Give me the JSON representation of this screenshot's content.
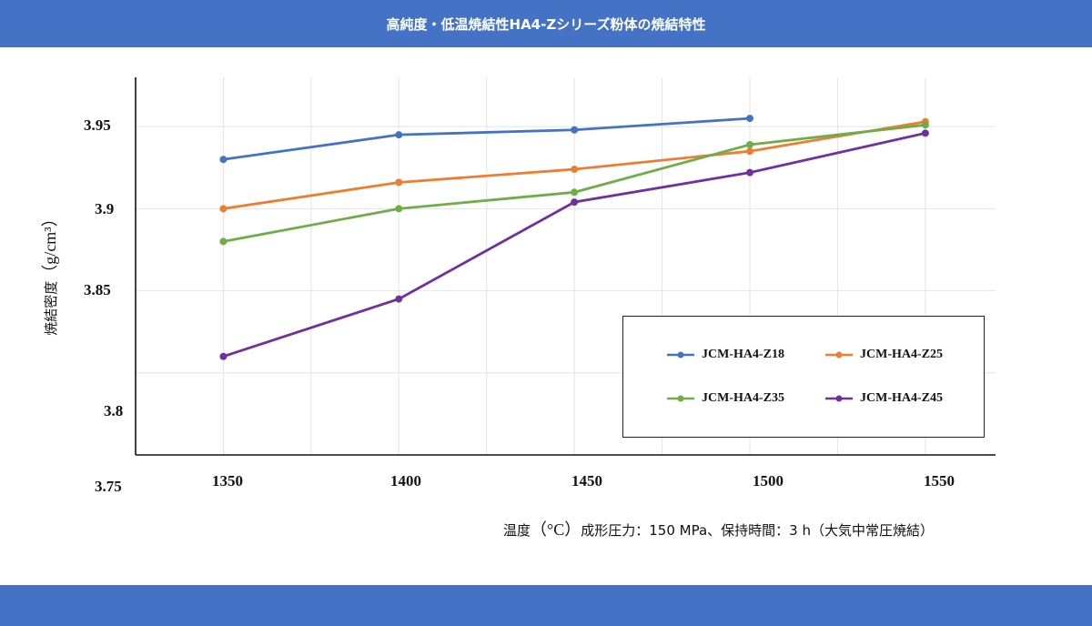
{
  "header": {
    "title": "高純度・低温焼結性HA4-Zシリーズ粉体の焼結特性"
  },
  "chart_data": {
    "type": "line",
    "ylabel_main": "焼結密度",
    "ylabel_unit": "（g/cm³）",
    "xlabel_main": "温度",
    "xlabel_unit": "（°C）",
    "xlabel_note": "成形圧力：150 MPa、保持時間：3 h（大気中常圧焼結）",
    "x_ticks": [
      "1350",
      "1400",
      "1450",
      "1500",
      "1550"
    ],
    "y_ticks": [
      "3.95",
      "3.9",
      "3.85",
      "3.8",
      "3.75"
    ],
    "xlim": [
      1325,
      1570
    ],
    "ylim": [
      3.75,
      3.98
    ],
    "grid": true,
    "legend_position": "lower-right",
    "x": [
      1350,
      1400,
      1450,
      1500,
      1550
    ],
    "series": [
      {
        "name": "JCM-HA4-Z18",
        "color": "#4472c4",
        "values": [
          3.93,
          3.945,
          3.948,
          3.955,
          null
        ]
      },
      {
        "name": "JCM-HA4-Z25",
        "color": "#ed7d31",
        "values": [
          3.9,
          3.916,
          3.924,
          3.935,
          3.953
        ]
      },
      {
        "name": "JCM-HA4-Z35",
        "color": "#70ad47",
        "values": [
          3.88,
          3.9,
          3.91,
          3.939,
          3.951
        ]
      },
      {
        "name": "JCM-HA4-Z45",
        "color": "#7030a0",
        "values": [
          3.81,
          3.845,
          3.904,
          3.922,
          3.946
        ]
      }
    ]
  }
}
